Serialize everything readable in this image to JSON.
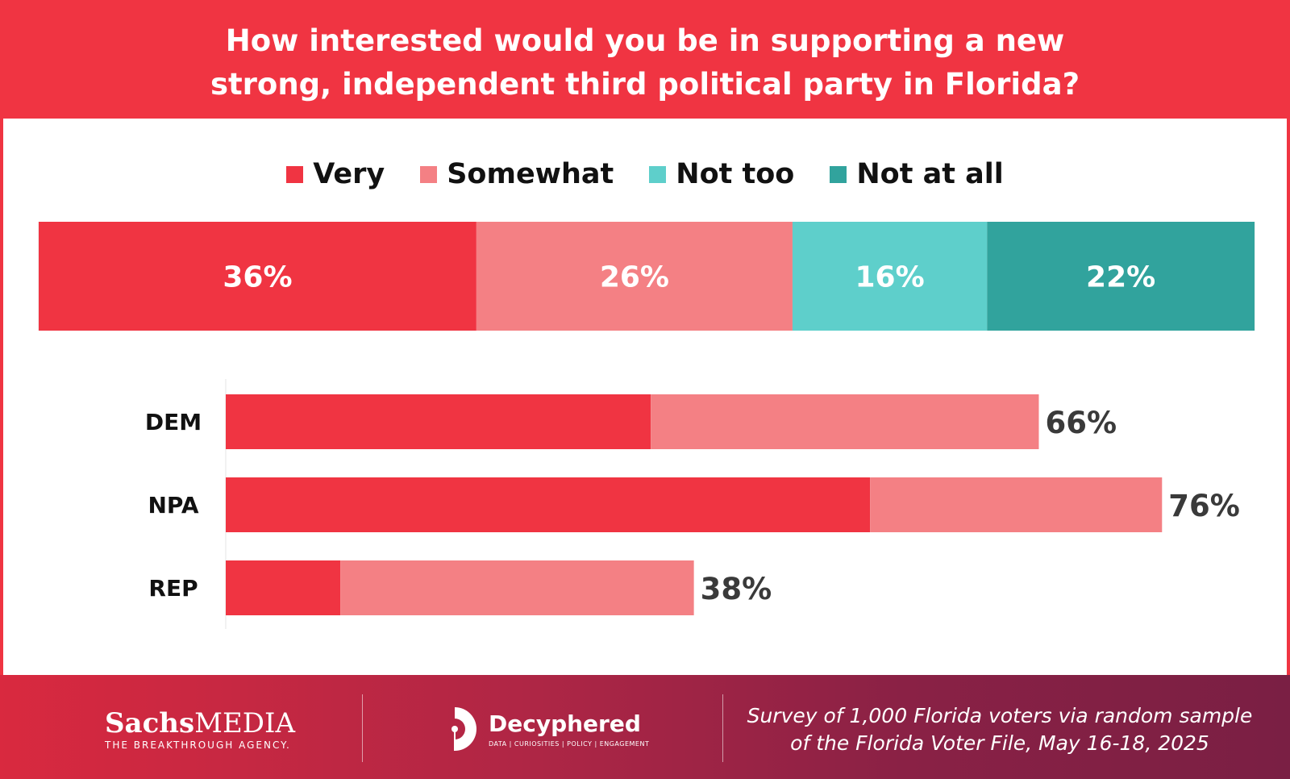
{
  "title_lines": [
    "How interested would you be in supporting a new",
    "strong, independent third political party in Florida?"
  ],
  "colors": {
    "header": "#f03442",
    "very": "#f03442",
    "somewhat": "#f48084",
    "not_too": "#5ecfcb",
    "not_at_all": "#31a39d",
    "total_label": "#3a3a3a",
    "grid": "#e6e6e6"
  },
  "chart_data": [
    {
      "type": "bar",
      "orientation": "horizontal-stacked",
      "legend": [
        "Very",
        "Somewhat",
        "Not too",
        "Not at all"
      ],
      "legend_position": "top",
      "xlim": [
        0,
        100
      ],
      "series": [
        {
          "name": "Very",
          "values": [
            36
          ],
          "label": "36%"
        },
        {
          "name": "Somewhat",
          "values": [
            26
          ],
          "label": "26%"
        },
        {
          "name": "Not too",
          "values": [
            16
          ],
          "label": "16%"
        },
        {
          "name": "Not at all",
          "values": [
            22
          ],
          "label": "22%"
        }
      ]
    },
    {
      "type": "bar",
      "orientation": "horizontal-stacked",
      "categories": [
        "DEM",
        "NPA",
        "REP"
      ],
      "xlim": [
        0,
        100
      ],
      "series": [
        {
          "name": "Very",
          "values": [
            34.5,
            52.3,
            9.3
          ]
        },
        {
          "name": "Somewhat",
          "values": [
            31.5,
            23.7,
            28.7
          ]
        }
      ],
      "totals": [
        "66%",
        "76%",
        "38%"
      ]
    }
  ],
  "footer": {
    "sachs_bold": "Sachs",
    "sachs_light": "MEDIA",
    "sachs_tagline": "THE BREAKTHROUGH AGENCY.",
    "decyphered_name": "Decyphered",
    "decyphered_tagline": "DATA | CURIOSITIES | POLICY | ENGAGEMENT",
    "survey_lines": [
      "Survey of 1,000 Florida voters via random sample",
      "of the Florida Voter File, May 16-18, 2025"
    ]
  }
}
